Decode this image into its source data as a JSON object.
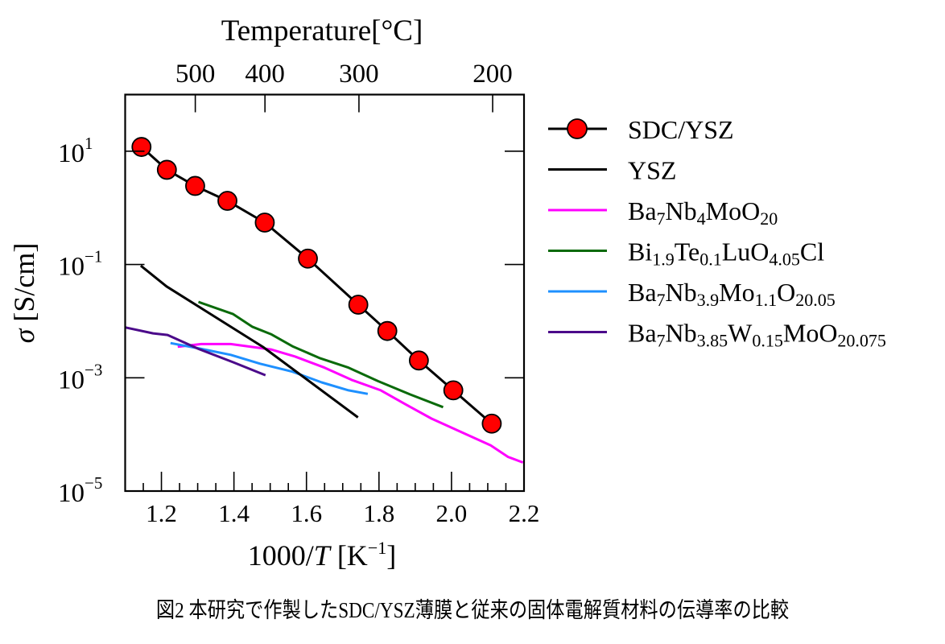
{
  "chart_data": {
    "type": "line",
    "x_scale": "linear",
    "y_scale": "log",
    "xlabel": "1000/T [K⁻¹]",
    "xlabel_parts": {
      "main": "1000/",
      "italic": "T",
      "unit": " [K",
      "sup": "−1",
      "close": "]"
    },
    "ylabel": "σ [S/cm]",
    "ylabel_parts": {
      "italic": "σ",
      "unit": " [S/cm]"
    },
    "top_axis_label": "Temperature[°C]",
    "xlim": [
      1.1,
      2.2
    ],
    "ylim": [
      1e-05,
      100
    ],
    "x_ticks": [
      "1.2",
      "1.4",
      "1.6",
      "1.8",
      "2.0",
      "2.2"
    ],
    "x_tick_values": [
      1.2,
      1.4,
      1.6,
      1.8,
      2.0,
      2.2
    ],
    "y_ticks": [
      {
        "base": "10",
        "exp": "1",
        "value": 10
      },
      {
        "base": "10",
        "exp": "−1",
        "value": 0.1
      },
      {
        "base": "10",
        "exp": "−3",
        "value": 0.001
      },
      {
        "base": "10",
        "exp": "−5",
        "value": 1e-05
      }
    ],
    "top_ticks": [
      {
        "label": "500",
        "celsius": 500
      },
      {
        "label": "400",
        "celsius": 400
      },
      {
        "label": "300",
        "celsius": 300
      },
      {
        "label": "200",
        "celsius": 200
      }
    ],
    "grid": false,
    "legend_placement": "outside-right",
    "series": [
      {
        "name": "SDC/YSZ",
        "color": "#000000",
        "marker": "circle",
        "marker_color": "#ff0000",
        "label_parts": [
          {
            "t": "SDC/YSZ"
          }
        ],
        "x": [
          1.145,
          1.215,
          1.293,
          1.382,
          1.485,
          1.604,
          1.743,
          1.823,
          1.91,
          2.005,
          2.111
        ],
        "y": [
          11.9,
          4.7,
          2.44,
          1.33,
          0.55,
          0.127,
          0.0195,
          0.0067,
          0.00202,
          0.0006,
          0.000155
        ]
      },
      {
        "name": "YSZ",
        "color": "#000000",
        "label_parts": [
          {
            "t": "YSZ"
          }
        ],
        "x": [
          1.143,
          1.214,
          1.48,
          1.742
        ],
        "y": [
          0.095,
          0.041,
          0.0035,
          0.0002
        ]
      },
      {
        "name": "Ba7Nb4MoO20",
        "color": "#ff00ff",
        "label_parts": [
          {
            "t": "Ba"
          },
          {
            "s": "7"
          },
          {
            "t": "Nb"
          },
          {
            "s": "4"
          },
          {
            "t": "MoO"
          },
          {
            "s": "20"
          }
        ],
        "x": [
          1.245,
          1.31,
          1.391,
          1.502,
          1.568,
          1.65,
          1.724,
          1.805,
          1.871,
          1.945,
          2.027,
          2.108,
          2.156,
          2.197
        ],
        "y": [
          0.00352,
          0.00394,
          0.00394,
          0.00316,
          0.00238,
          0.00151,
          0.00092,
          0.0006,
          0.000346,
          0.00019,
          0.00011,
          6.4e-05,
          4e-05,
          3.2e-05
        ]
      },
      {
        "name": "Bi1.9Te0.1LuO4.05Cl",
        "color": "#0a6a0a",
        "label_parts": [
          {
            "t": "Bi"
          },
          {
            "s": "1.9"
          },
          {
            "t": "Te"
          },
          {
            "s": "0.1"
          },
          {
            "t": "LuO"
          },
          {
            "s": "4.05"
          },
          {
            "t": "Cl"
          }
        ],
        "x": [
          1.302,
          1.398,
          1.45,
          1.502,
          1.561,
          1.638,
          1.716,
          1.797,
          1.886,
          1.977
        ],
        "y": [
          0.0218,
          0.0133,
          0.00798,
          0.00589,
          0.00361,
          0.00221,
          0.00151,
          0.000875,
          0.000507,
          0.000303
        ]
      },
      {
        "name": "Ba7Nb3.9Mo1.1O20.05",
        "color": "#1e90ff",
        "label_parts": [
          {
            "t": "Ba"
          },
          {
            "s": "7"
          },
          {
            "t": "Nb"
          },
          {
            "s": "3.9"
          },
          {
            "t": "Mo"
          },
          {
            "s": "1.1"
          },
          {
            "t": "O"
          },
          {
            "s": "20.05"
          }
        ],
        "x": [
          1.225,
          1.31,
          1.391,
          1.472,
          1.561,
          1.642,
          1.716,
          1.769
        ],
        "y": [
          0.0041,
          0.00324,
          0.00254,
          0.00177,
          0.00128,
          0.00083,
          0.0006,
          0.00052
        ]
      },
      {
        "name": "Ba7Nb3.85W0.15MoO20.075",
        "color": "#4b0a8a",
        "label_parts": [
          {
            "t": "Ba"
          },
          {
            "s": "7"
          },
          {
            "t": "Nb"
          },
          {
            "s": "3.85"
          },
          {
            "t": "W"
          },
          {
            "s": "0.15"
          },
          {
            "t": "MoO"
          },
          {
            "s": "20.075"
          }
        ],
        "x": [
          1.101,
          1.177,
          1.217,
          1.302,
          1.398,
          1.487
        ],
        "y": [
          0.00773,
          0.00608,
          0.0057,
          0.00324,
          0.00188,
          0.00111
        ]
      }
    ]
  },
  "caption": "図2 本研究で作製したSDC/YSZ薄膜と従来の固体電解質材料の伝導率の比較"
}
